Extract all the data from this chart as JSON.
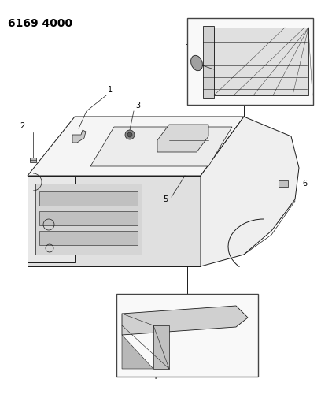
{
  "title": "6169 4000",
  "bg_color": "#ffffff",
  "title_fontsize": 10,
  "fig_width": 4.08,
  "fig_height": 5.33,
  "dpi": 100
}
